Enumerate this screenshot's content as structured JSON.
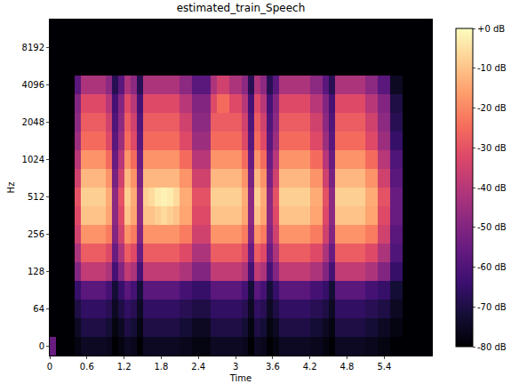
{
  "chart_data": {
    "type": "heatmap",
    "title": "estimated_train_Speech",
    "x_label": "Time",
    "y_label": "Hz",
    "grid": false,
    "x": [
      0.05,
      0.15,
      0.25,
      0.35,
      0.45,
      0.55,
      0.65,
      0.75,
      0.85,
      0.95,
      1.05,
      1.15,
      1.25,
      1.35,
      1.45,
      1.55,
      1.65,
      1.75,
      1.85,
      1.95,
      2.05,
      2.15,
      2.25,
      2.35,
      2.45,
      2.55,
      2.65,
      2.75,
      2.85,
      2.95,
      3.05,
      3.15,
      3.25,
      3.35,
      3.45,
      3.55,
      3.65,
      3.75,
      3.85,
      3.95,
      4.05,
      4.15,
      4.25,
      4.35,
      4.45,
      4.55,
      4.65,
      4.75,
      4.85,
      4.95,
      5.05,
      5.15,
      5.25,
      5.35,
      5.45,
      5.55,
      5.65,
      5.75,
      5.85,
      5.95,
      6.05,
      6.15
    ],
    "xlim": [
      0,
      6.17
    ],
    "xticks": [
      0,
      0.6,
      1.2,
      1.8,
      2.4,
      3,
      3.6,
      4.2,
      4.8,
      5.4
    ],
    "categories": [
      "0",
      null,
      "64",
      null,
      "128",
      null,
      "256",
      null,
      "512",
      null,
      "1024",
      null,
      "2048",
      null,
      "4096",
      null,
      "8192",
      null
    ],
    "cells": [
      [
        -55,
        -80,
        -80,
        -80,
        -78,
        -75,
        -75,
        -75,
        -75,
        -76,
        -80,
        -78,
        -75,
        -76,
        -80,
        -75,
        -75,
        -75,
        -75,
        -75,
        -75,
        -76,
        -76,
        -78,
        -78,
        -78,
        -75,
        -75,
        -75,
        -75,
        -75,
        -76,
        -80,
        -75,
        -76,
        -80,
        -78,
        -75,
        -75,
        -75,
        -75,
        -75,
        -76,
        -76,
        -78,
        -80,
        -75,
        -75,
        -75,
        -75,
        -75,
        -76,
        -76,
        -78,
        -78,
        -80,
        -80,
        -80,
        -80,
        -80,
        -80,
        -80
      ],
      [
        -80,
        -80,
        -80,
        -80,
        -75,
        -70,
        -70,
        -70,
        -70,
        -72,
        -78,
        -75,
        -70,
        -72,
        -78,
        -70,
        -70,
        -70,
        -70,
        -70,
        -70,
        -72,
        -72,
        -75,
        -75,
        -75,
        -70,
        -70,
        -70,
        -70,
        -70,
        -72,
        -78,
        -70,
        -72,
        -78,
        -75,
        -70,
        -70,
        -70,
        -70,
        -70,
        -72,
        -72,
        -75,
        -78,
        -70,
        -70,
        -70,
        -70,
        -70,
        -72,
        -72,
        -75,
        -75,
        -78,
        -78,
        -80,
        -80,
        -80,
        -80,
        -80
      ],
      [
        -80,
        -80,
        -80,
        -80,
        -70,
        -66,
        -66,
        -66,
        -66,
        -68,
        -75,
        -70,
        -66,
        -68,
        -75,
        -66,
        -66,
        -66,
        -66,
        -66,
        -66,
        -68,
        -68,
        -70,
        -70,
        -70,
        -66,
        -66,
        -66,
        -66,
        -66,
        -68,
        -75,
        -66,
        -68,
        -75,
        -70,
        -66,
        -66,
        -66,
        -66,
        -66,
        -68,
        -68,
        -70,
        -75,
        -66,
        -66,
        -66,
        -66,
        -66,
        -68,
        -68,
        -70,
        -70,
        -75,
        -75,
        -80,
        -80,
        -80,
        -80,
        -80
      ],
      [
        -80,
        -80,
        -80,
        -80,
        -65,
        -58,
        -58,
        -58,
        -58,
        -62,
        -72,
        -65,
        -58,
        -62,
        -72,
        -58,
        -58,
        -58,
        -58,
        -58,
        -58,
        -62,
        -62,
        -65,
        -65,
        -65,
        -58,
        -58,
        -58,
        -58,
        -58,
        -62,
        -72,
        -58,
        -62,
        -72,
        -65,
        -58,
        -58,
        -58,
        -58,
        -58,
        -62,
        -62,
        -65,
        -72,
        -58,
        -58,
        -58,
        -58,
        -58,
        -62,
        -62,
        -65,
        -65,
        -72,
        -72,
        -80,
        -80,
        -80,
        -80,
        -80
      ],
      [
        -80,
        -80,
        -80,
        -80,
        -50,
        -38,
        -38,
        -38,
        -38,
        -42,
        -62,
        -50,
        -38,
        -42,
        -62,
        -38,
        -38,
        -38,
        -38,
        -38,
        -38,
        -42,
        -42,
        -50,
        -50,
        -50,
        -38,
        -38,
        -38,
        -38,
        -38,
        -42,
        -62,
        -38,
        -42,
        -62,
        -50,
        -38,
        -38,
        -38,
        -38,
        -38,
        -42,
        -42,
        -50,
        -62,
        -38,
        -38,
        -38,
        -38,
        -38,
        -42,
        -42,
        -50,
        -50,
        -65,
        -65,
        -80,
        -80,
        -80,
        -80,
        -80
      ],
      [
        -80,
        -80,
        -80,
        -80,
        -42,
        -28,
        -28,
        -28,
        -28,
        -32,
        -55,
        -42,
        -28,
        -32,
        -55,
        -28,
        -28,
        -28,
        -28,
        -28,
        -28,
        -32,
        -32,
        -42,
        -42,
        -42,
        -28,
        -28,
        -28,
        -28,
        -28,
        -32,
        -55,
        -28,
        -32,
        -55,
        -42,
        -28,
        -28,
        -28,
        -28,
        -28,
        -32,
        -32,
        -42,
        -55,
        -28,
        -28,
        -28,
        -28,
        -28,
        -32,
        -32,
        -42,
        -42,
        -60,
        -60,
        -80,
        -80,
        -80,
        -80,
        -80
      ],
      [
        -80,
        -80,
        -80,
        -80,
        -35,
        -18,
        -18,
        -18,
        -18,
        -22,
        -50,
        -35,
        -18,
        -22,
        -50,
        -18,
        -18,
        -18,
        -18,
        -18,
        -18,
        -22,
        -22,
        -35,
        -35,
        -35,
        -18,
        -18,
        -18,
        -18,
        -18,
        -22,
        -50,
        -18,
        -22,
        -50,
        -35,
        -18,
        -18,
        -18,
        -18,
        -18,
        -22,
        -22,
        -35,
        -50,
        -18,
        -18,
        -18,
        -18,
        -18,
        -22,
        -22,
        -35,
        -35,
        -58,
        -58,
        -80,
        -80,
        -80,
        -80,
        -80
      ],
      [
        -80,
        -80,
        -80,
        -80,
        -32,
        -10,
        -10,
        -10,
        -10,
        -15,
        -48,
        -32,
        -10,
        -15,
        -48,
        -10,
        -10,
        -8,
        -6,
        -8,
        -10,
        -15,
        -15,
        -32,
        -32,
        -32,
        -10,
        -10,
        -10,
        -10,
        -10,
        -15,
        -48,
        -10,
        -15,
        -48,
        -32,
        -10,
        -10,
        -10,
        -10,
        -10,
        -15,
        -15,
        -32,
        -48,
        -10,
        -10,
        -10,
        -10,
        -10,
        -15,
        -15,
        -32,
        -32,
        -55,
        -55,
        -80,
        -80,
        -80,
        -80,
        -80
      ],
      [
        -80,
        -80,
        -80,
        -80,
        -30,
        -8,
        -8,
        -8,
        -8,
        -14,
        -48,
        -30,
        -8,
        -14,
        -48,
        -8,
        -6,
        -3,
        -2,
        -3,
        -6,
        -14,
        -14,
        -30,
        -30,
        -30,
        -8,
        -8,
        -8,
        -8,
        -8,
        -14,
        -48,
        -8,
        -14,
        -48,
        -30,
        -8,
        -8,
        -8,
        -8,
        -8,
        -14,
        -14,
        -30,
        -48,
        -8,
        -8,
        -8,
        -8,
        -8,
        -14,
        -14,
        -30,
        -30,
        -55,
        -55,
        -80,
        -80,
        -80,
        -80,
        -80
      ],
      [
        -80,
        -80,
        -80,
        -80,
        -35,
        -12,
        -12,
        -12,
        -12,
        -18,
        -52,
        -35,
        -12,
        -18,
        -52,
        -12,
        -12,
        -12,
        -12,
        -12,
        -12,
        -18,
        -18,
        -35,
        -35,
        -35,
        -12,
        -12,
        -12,
        -12,
        -12,
        -18,
        -52,
        -12,
        -18,
        -52,
        -35,
        -12,
        -12,
        -12,
        -12,
        -12,
        -18,
        -18,
        -35,
        -52,
        -12,
        -12,
        -12,
        -12,
        -12,
        -18,
        -18,
        -35,
        -35,
        -58,
        -58,
        -80,
        -80,
        -80,
        -80,
        -80
      ],
      [
        -80,
        -80,
        -80,
        -80,
        -40,
        -18,
        -18,
        -18,
        -18,
        -25,
        -55,
        -40,
        -18,
        -25,
        -55,
        -18,
        -18,
        -18,
        -18,
        -18,
        -18,
        -25,
        -25,
        -40,
        -40,
        -40,
        -18,
        -18,
        -18,
        -18,
        -18,
        -25,
        -55,
        -18,
        -25,
        -55,
        -40,
        -18,
        -18,
        -18,
        -18,
        -18,
        -25,
        -25,
        -40,
        -55,
        -18,
        -18,
        -18,
        -18,
        -18,
        -25,
        -25,
        -40,
        -40,
        -60,
        -60,
        -80,
        -80,
        -80,
        -80,
        -80
      ],
      [
        -80,
        -80,
        -80,
        -80,
        -45,
        -25,
        -25,
        -25,
        -25,
        -32,
        -58,
        -45,
        -25,
        -32,
        -58,
        -25,
        -25,
        -25,
        -25,
        -25,
        -25,
        -32,
        -32,
        -45,
        -45,
        -45,
        -25,
        -25,
        -25,
        -25,
        -25,
        -32,
        -58,
        -25,
        -32,
        -58,
        -45,
        -25,
        -25,
        -25,
        -25,
        -25,
        -32,
        -32,
        -45,
        -58,
        -25,
        -25,
        -25,
        -25,
        -25,
        -32,
        -32,
        -45,
        -45,
        -65,
        -65,
        -80,
        -80,
        -80,
        -80,
        -80
      ],
      [
        -80,
        -80,
        -80,
        -80,
        -48,
        -28,
        -28,
        -28,
        -28,
        -35,
        -60,
        -48,
        -28,
        -35,
        -60,
        -28,
        -28,
        -28,
        -28,
        -28,
        -28,
        -35,
        -35,
        -48,
        -48,
        -48,
        -28,
        -28,
        -28,
        -28,
        -28,
        -35,
        -60,
        -28,
        -35,
        -60,
        -48,
        -28,
        -28,
        -28,
        -28,
        -28,
        -35,
        -35,
        -48,
        -60,
        -28,
        -28,
        -28,
        -28,
        -28,
        -35,
        -35,
        -48,
        -48,
        -68,
        -68,
        -80,
        -80,
        -80,
        -80,
        -80
      ],
      [
        -80,
        -80,
        -80,
        -80,
        -50,
        -32,
        -32,
        -32,
        -32,
        -40,
        -62,
        -50,
        -32,
        -40,
        -62,
        -32,
        -32,
        -32,
        -32,
        -32,
        -32,
        -40,
        -40,
        -50,
        -50,
        -50,
        -32,
        -25,
        -25,
        -32,
        -32,
        -40,
        -62,
        -32,
        -40,
        -62,
        -50,
        -32,
        -32,
        -32,
        -32,
        -32,
        -40,
        -40,
        -50,
        -62,
        -32,
        -32,
        -32,
        -32,
        -32,
        -40,
        -40,
        -50,
        -50,
        -70,
        -70,
        -80,
        -80,
        -80,
        -80,
        -80
      ],
      [
        -80,
        -80,
        -80,
        -80,
        -58,
        -42,
        -42,
        -42,
        -42,
        -48,
        -68,
        -58,
        -42,
        -48,
        -68,
        -42,
        -42,
        -42,
        -42,
        -42,
        -42,
        -48,
        -48,
        -58,
        -58,
        -58,
        -42,
        -35,
        -35,
        -42,
        -42,
        -48,
        -68,
        -42,
        -48,
        -68,
        -58,
        -42,
        -42,
        -42,
        -42,
        -42,
        -48,
        -48,
        -58,
        -68,
        -42,
        -42,
        -42,
        -42,
        -42,
        -48,
        -48,
        -58,
        -58,
        -75,
        -75,
        -80,
        -80,
        -80,
        -80,
        -80
      ],
      [
        -80,
        -80,
        -80,
        -80,
        -80,
        -80,
        -80,
        -80,
        -80,
        -80,
        -80,
        -80,
        -80,
        -80,
        -80,
        -80,
        -80,
        -80,
        -80,
        -80,
        -80,
        -80,
        -80,
        -80,
        -80,
        -80,
        -80,
        -80,
        -80,
        -80,
        -80,
        -80,
        -80,
        -80,
        -80,
        -80,
        -80,
        -80,
        -80,
        -80,
        -80,
        -80,
        -80,
        -80,
        -80,
        -80,
        -80,
        -80,
        -80,
        -80,
        -80,
        -80,
        -80,
        -80,
        -80,
        -80,
        -80,
        -80,
        -80,
        -80,
        -80,
        -80
      ],
      [
        -80,
        -80,
        -80,
        -80,
        -80,
        -80,
        -80,
        -80,
        -80,
        -80,
        -80,
        -80,
        -80,
        -80,
        -80,
        -80,
        -80,
        -80,
        -80,
        -80,
        -80,
        -80,
        -80,
        -80,
        -80,
        -80,
        -80,
        -80,
        -80,
        -80,
        -80,
        -80,
        -80,
        -80,
        -80,
        -80,
        -80,
        -80,
        -80,
        -80,
        -80,
        -80,
        -80,
        -80,
        -80,
        -80,
        -80,
        -80,
        -80,
        -80,
        -80,
        -80,
        -80,
        -80,
        -80,
        -80,
        -80,
        -80,
        -80,
        -80,
        -80,
        -80
      ],
      [
        -80,
        -80,
        -80,
        -80,
        -80,
        -80,
        -80,
        -80,
        -80,
        -80,
        -80,
        -80,
        -80,
        -80,
        -80,
        -80,
        -80,
        -80,
        -80,
        -80,
        -80,
        -80,
        -80,
        -80,
        -80,
        -80,
        -80,
        -80,
        -80,
        -80,
        -80,
        -80,
        -80,
        -80,
        -80,
        -80,
        -80,
        -80,
        -80,
        -80,
        -80,
        -80,
        -80,
        -80,
        -80,
        -80,
        -80,
        -80,
        -80,
        -80,
        -80,
        -80,
        -80,
        -80,
        -80,
        -80,
        -80,
        -80,
        -80,
        -80,
        -80,
        -80
      ]
    ],
    "colorbar_range": [
      -80,
      0
    ],
    "colorbar_ticks": [
      {
        "value": 0,
        "label": "+0 dB"
      },
      {
        "value": -10,
        "label": "-10 dB"
      },
      {
        "value": -20,
        "label": "-20 dB"
      },
      {
        "value": -30,
        "label": "-30 dB"
      },
      {
        "value": -40,
        "label": "-40 dB"
      },
      {
        "value": -50,
        "label": "-50 dB"
      },
      {
        "value": -60,
        "label": "-60 dB"
      },
      {
        "value": -70,
        "label": "-70 dB"
      },
      {
        "value": -80,
        "label": "-80 dB"
      }
    ]
  }
}
